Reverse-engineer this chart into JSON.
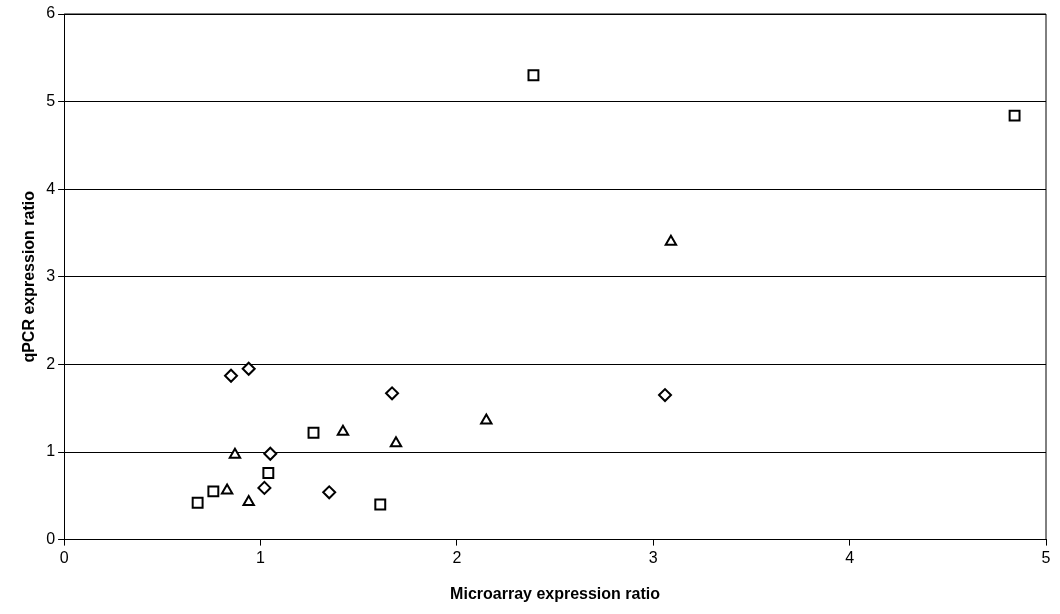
{
  "chart_data": {
    "type": "scatter",
    "xlabel": "Microarray expression ratio",
    "ylabel": "qPCR expression ratio",
    "xlim": [
      0,
      5
    ],
    "xticks": [
      0,
      1,
      2,
      3,
      4,
      5
    ],
    "ylim": [
      0,
      6
    ],
    "yticks": [
      0,
      1,
      2,
      3,
      4,
      5,
      6
    ],
    "grid": "y",
    "legend": false,
    "series": [
      {
        "color": "#000000",
        "marker": "square",
        "x": [
          0.68,
          0.76,
          1.04,
          1.27,
          1.61,
          2.39,
          4.84
        ],
        "values": [
          0.42,
          0.55,
          0.76,
          1.22,
          0.4,
          5.3,
          4.84
        ]
      },
      {
        "color": "#000000",
        "marker": "triangle",
        "x": [
          0.83,
          0.87,
          0.94,
          1.42,
          1.69,
          2.15,
          3.09
        ],
        "values": [
          0.56,
          0.97,
          0.43,
          1.23,
          1.1,
          1.36,
          3.4
        ]
      },
      {
        "color": "#000000",
        "marker": "diamond",
        "x": [
          0.85,
          0.94,
          1.02,
          1.05,
          1.35,
          1.67,
          3.06
        ],
        "values": [
          1.87,
          1.95,
          0.59,
          0.98,
          0.54,
          1.67,
          1.65
        ]
      }
    ]
  }
}
